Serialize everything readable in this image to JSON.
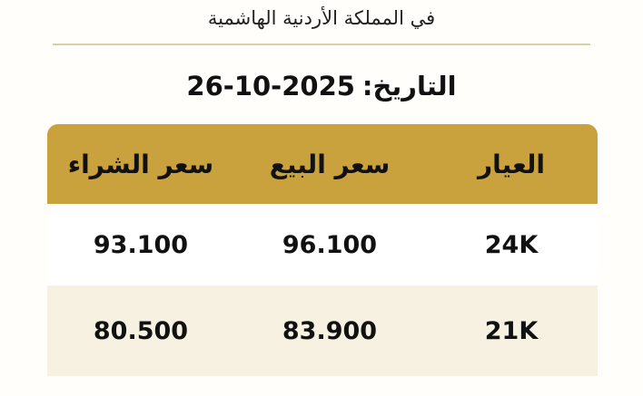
{
  "subtitle": "في المملكة الأردنية الهاشمية",
  "date": {
    "label": "التاريخ:",
    "value": "26-10-2025"
  },
  "table": {
    "headers": [
      "العيار",
      "سعر البيع",
      "سعر الشراء"
    ],
    "rows": [
      [
        "24K",
        "96.100",
        "93.100"
      ],
      [
        "21K",
        "83.900",
        "80.500"
      ]
    ]
  },
  "colors": {
    "header": "#c9a23e",
    "alt_row": "#f6f1e1",
    "divider": "#d9cfa4"
  }
}
